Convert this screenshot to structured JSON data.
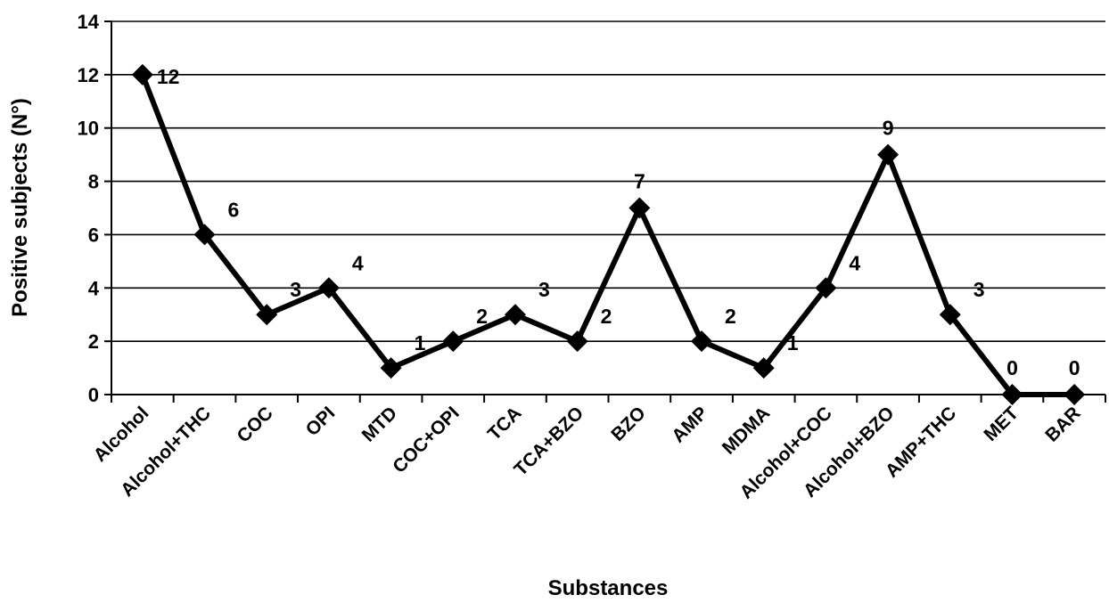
{
  "chart_data": {
    "type": "line",
    "categories": [
      "Alcohol",
      "Alcohol+THC",
      "COC",
      "OPI",
      "MTD",
      "COC+OPI",
      "TCA",
      "TCA+BZO",
      "BZO",
      "AMP",
      "MDMA",
      "Alcohol+COC",
      "Alcohol+BZO",
      "AMP+THC",
      "MET",
      "BAR"
    ],
    "series": [
      {
        "values": [
          12,
          6,
          3,
          4,
          1,
          2,
          3,
          2,
          7,
          2,
          1,
          4,
          9,
          3,
          0,
          0
        ]
      }
    ],
    "data_labels": [
      "12",
      "6",
      "3",
      "4",
      "1",
      "2",
      "3",
      "2",
      "7",
      "2",
      "1",
      "4",
      "9",
      "3",
      "0",
      "0"
    ],
    "xlabel": "Substances",
    "ylabel": "Positive subjects (N°)",
    "ylim": [
      0,
      14
    ],
    "yticks": [
      "0",
      "2",
      "4",
      "6",
      "8",
      "10",
      "12",
      "14"
    ],
    "grid": true,
    "legend": "none",
    "colors": {
      "line": "#000000",
      "marker": "#000000",
      "grid": "#000000"
    }
  }
}
